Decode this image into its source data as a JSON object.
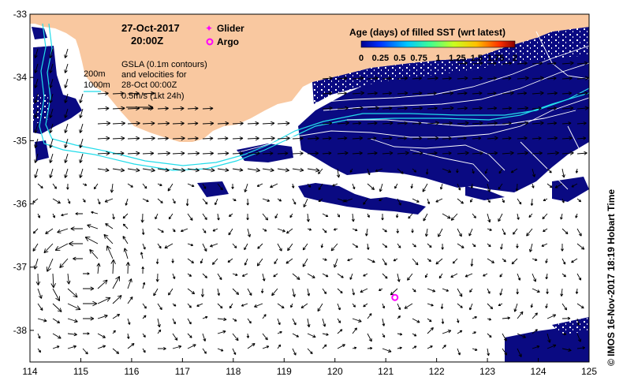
{
  "header": {
    "date": "27-Oct-2017",
    "time": "20:00Z"
  },
  "legend_markers": {
    "glider": "Glider",
    "argo": "Argo",
    "marker_color": "#ff00ff"
  },
  "colorbar": {
    "title": "Age (days) of filled SST (wrt latest)",
    "ticks": [
      "0",
      "0.25",
      "0.5",
      "0.75",
      "1",
      "1.25",
      "1.5",
      "1.75",
      "2"
    ],
    "tick_values": [
      0,
      0.25,
      0.5,
      0.75,
      1,
      1.25,
      1.5,
      1.75,
      2
    ]
  },
  "annotation": {
    "line1": "GSLA (0.1m contours)",
    "line2": "and velocities for",
    "line3": "28-Oct 00:00Z",
    "line4": "0.5m/s (1kt 24h)"
  },
  "bathymetry": {
    "label_200": "200m",
    "label_1000": "1000m",
    "color": "#22dcea"
  },
  "colors": {
    "land": "#f9c8a0",
    "sst_fill": "#0a0a82",
    "contour": "#ffffff",
    "ocean": "#ffffff"
  },
  "axes": {
    "x_ticks": [
      114,
      115,
      116,
      117,
      118,
      119,
      120,
      121,
      122,
      123,
      124,
      125
    ],
    "x_labels": [
      "114",
      "115",
      "116",
      "117",
      "118",
      "119",
      "120",
      "121",
      "122",
      "123",
      "124",
      "125"
    ],
    "y_ticks": [
      -33,
      -34,
      -35,
      -36,
      -37,
      -38
    ],
    "y_labels": [
      "-33",
      "-34",
      "-35",
      "-36",
      "-37",
      "-38"
    ],
    "lon_range": [
      114,
      125
    ],
    "lat_range": [
      -38.5,
      -33
    ]
  },
  "argo_float": {
    "lon": 121.18,
    "lat": -37.48
  },
  "credit": "© IMOS 16-Nov-2017 18:19 Hobart Time"
}
